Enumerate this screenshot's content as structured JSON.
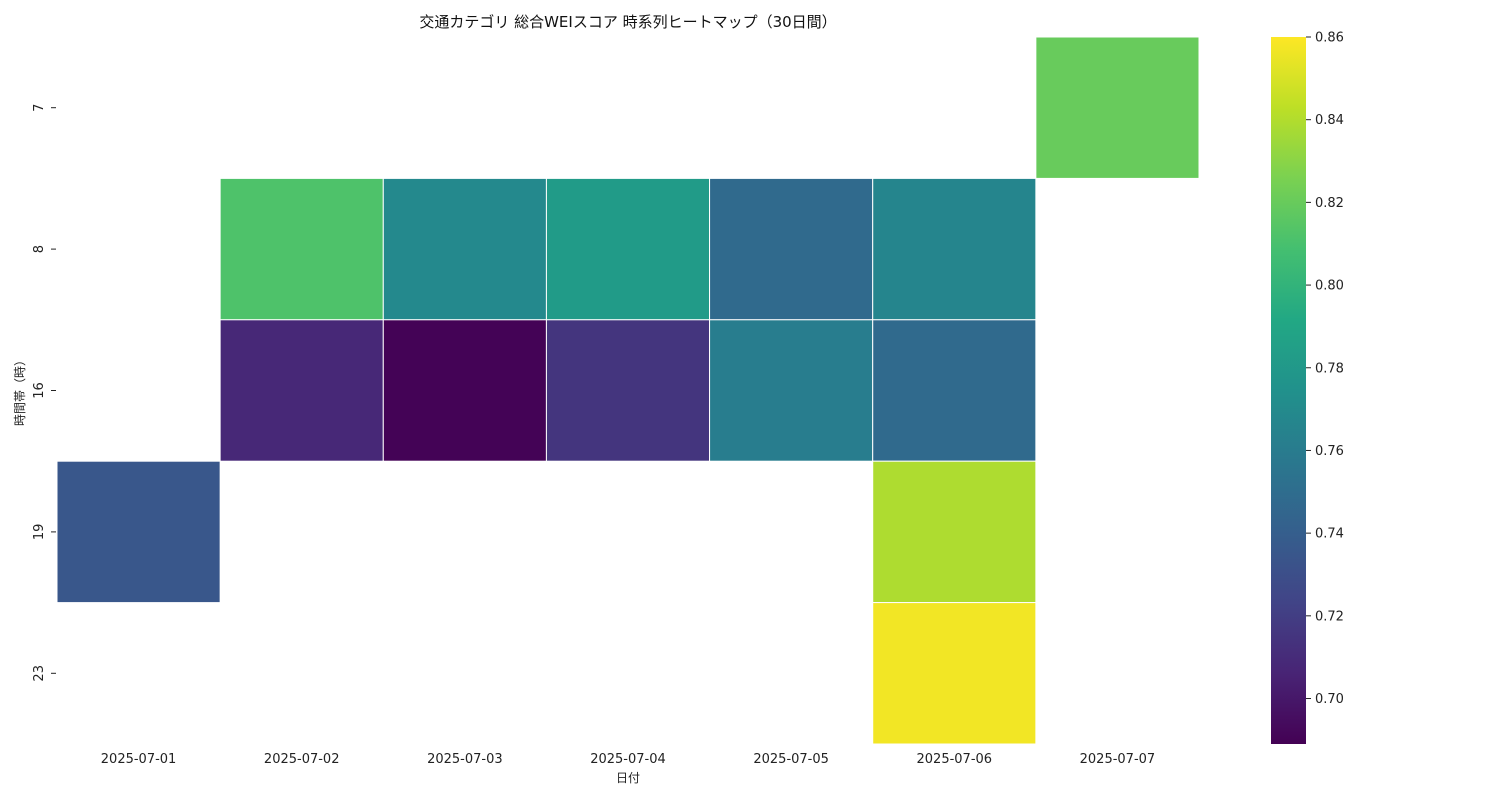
{
  "chart_data": {
    "type": "heatmap",
    "title": "交通カテゴリ 総合WEIスコア 時系列ヒートマップ（30日間）",
    "xlabel": "日付",
    "ylabel": "時間帯（時）",
    "x_categories": [
      "2025-07-01",
      "2025-07-02",
      "2025-07-03",
      "2025-07-04",
      "2025-07-05",
      "2025-07-06",
      "2025-07-07"
    ],
    "y_categories": [
      "7",
      "8",
      "16",
      "19",
      "23"
    ],
    "values": [
      [
        null,
        null,
        null,
        null,
        null,
        null,
        0.82
      ],
      [
        null,
        0.812,
        0.769,
        0.782,
        0.748,
        0.766,
        null
      ],
      [
        null,
        0.708,
        0.69,
        0.715,
        0.761,
        0.748,
        null
      ],
      [
        0.735,
        null,
        null,
        null,
        null,
        0.839,
        null
      ],
      [
        null,
        null,
        null,
        null,
        null,
        0.857,
        null
      ]
    ],
    "colormap": "viridis",
    "colorbar": {
      "min": 0.689,
      "max": 0.86,
      "ticks": [
        "0.70",
        "0.72",
        "0.74",
        "0.76",
        "0.78",
        "0.80",
        "0.82",
        "0.84",
        "0.86"
      ]
    },
    "grid": false,
    "cell_border_color": "#ffffff"
  }
}
